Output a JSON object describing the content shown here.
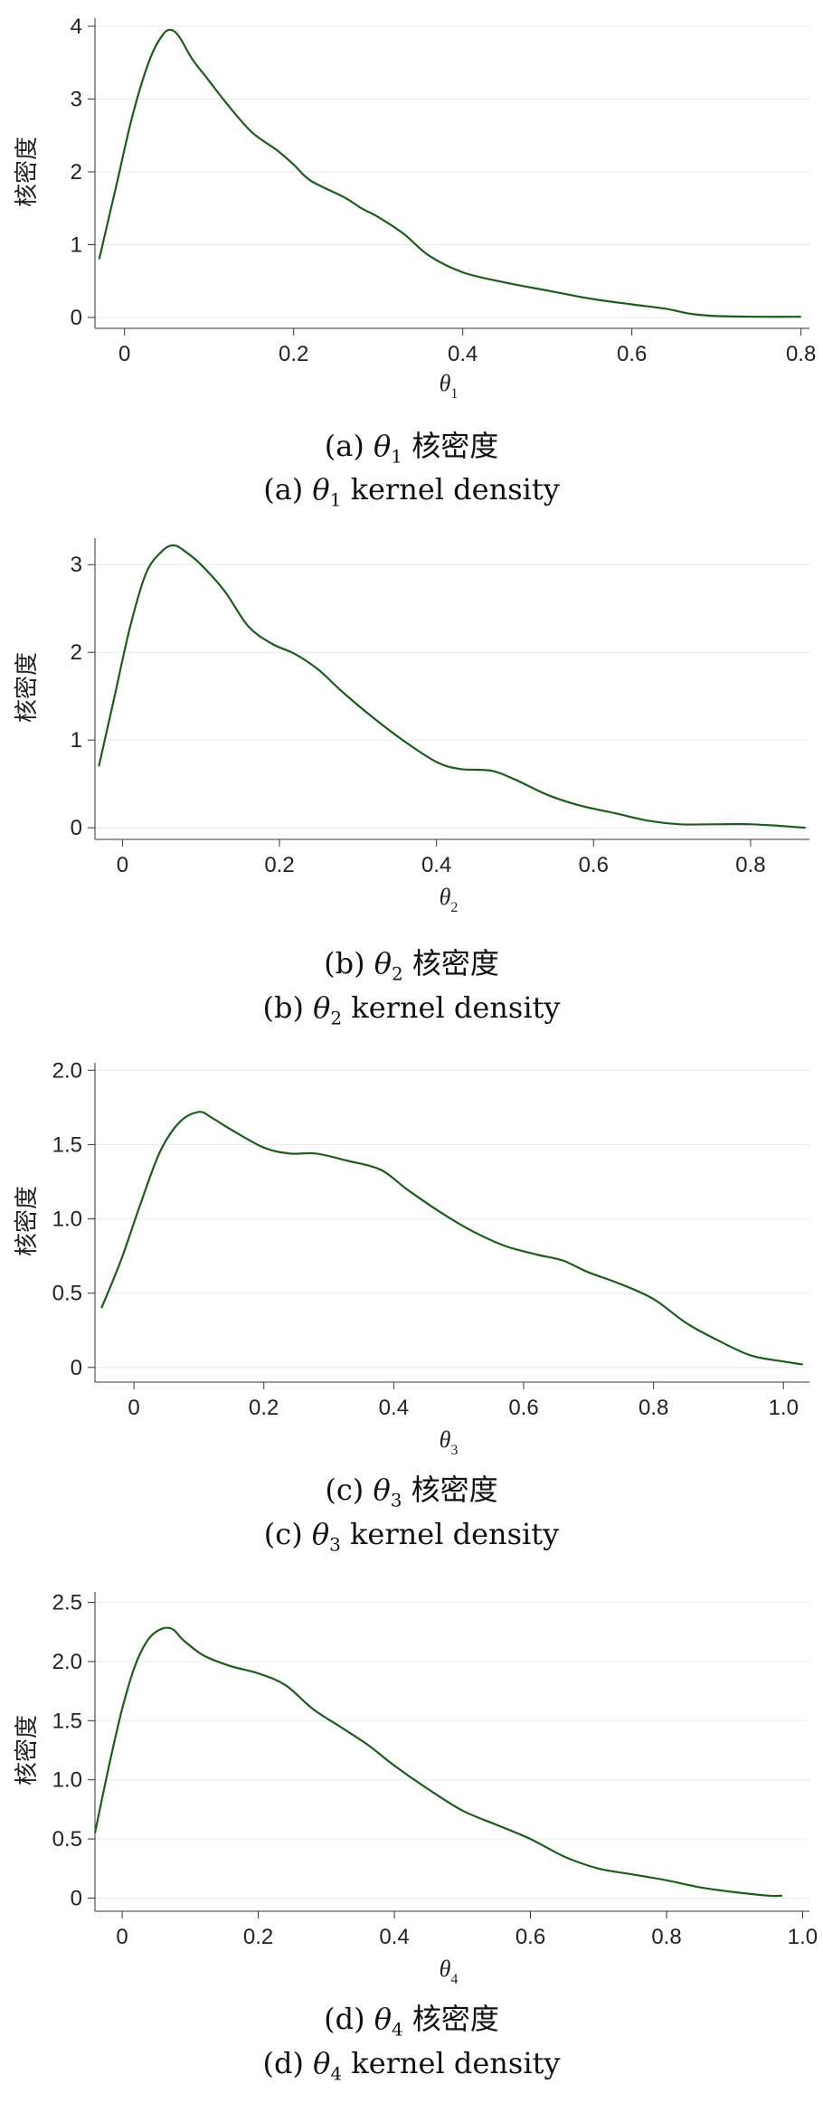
{
  "chart_data": [
    {
      "type": "line",
      "ylabel": "核密度",
      "xlabel_symbol": "θ",
      "xlabel_sub": "1",
      "xticks": [
        "0",
        "0.2",
        "0.4",
        "0.6",
        "0.8"
      ],
      "yticks": [
        "0",
        "1",
        "2",
        "3",
        "4"
      ],
      "xlim": [
        -0.035,
        0.81
      ],
      "ylim": [
        -0.05,
        4.05
      ],
      "grid": "horizontal",
      "color": "#1e5b1e",
      "series": [
        {
          "x": [
            -0.03,
            -0.01,
            0.01,
            0.03,
            0.045,
            0.055,
            0.065,
            0.08,
            0.1,
            0.12,
            0.15,
            0.18,
            0.2,
            0.22,
            0.26,
            0.28,
            0.3,
            0.33,
            0.36,
            0.4,
            0.45,
            0.5,
            0.55,
            0.6,
            0.64,
            0.67,
            0.7,
            0.75,
            0.8
          ],
          "y": [
            0.8,
            1.8,
            2.8,
            3.55,
            3.88,
            3.95,
            3.85,
            3.55,
            3.25,
            2.95,
            2.55,
            2.3,
            2.1,
            1.88,
            1.65,
            1.5,
            1.38,
            1.15,
            0.85,
            0.62,
            0.48,
            0.37,
            0.26,
            0.18,
            0.12,
            0.05,
            0.02,
            0.01,
            0.01
          ]
        }
      ]
    },
    {
      "type": "line",
      "ylabel": "核密度",
      "xlabel_symbol": "θ",
      "xlabel_sub": "2",
      "xticks": [
        "0",
        "0.2",
        "0.4",
        "0.6",
        "0.8"
      ],
      "yticks": [
        "0",
        "1",
        "2",
        "3"
      ],
      "xlim": [
        -0.035,
        0.875
      ],
      "ylim": [
        -0.05,
        3.25
      ],
      "grid": "horizontal",
      "color": "#1e5b1e",
      "series": [
        {
          "x": [
            -0.03,
            -0.01,
            0.01,
            0.03,
            0.05,
            0.065,
            0.08,
            0.1,
            0.13,
            0.16,
            0.19,
            0.22,
            0.25,
            0.28,
            0.32,
            0.36,
            0.4,
            0.43,
            0.47,
            0.5,
            0.54,
            0.58,
            0.63,
            0.67,
            0.71,
            0.75,
            0.8,
            0.84,
            0.87
          ],
          "y": [
            0.7,
            1.5,
            2.3,
            2.9,
            3.15,
            3.22,
            3.15,
            3.0,
            2.7,
            2.3,
            2.1,
            1.98,
            1.8,
            1.55,
            1.25,
            0.98,
            0.75,
            0.67,
            0.65,
            0.55,
            0.38,
            0.26,
            0.16,
            0.08,
            0.04,
            0.04,
            0.04,
            0.02,
            0.0
          ]
        }
      ]
    },
    {
      "type": "line",
      "ylabel": "核密度",
      "xlabel_symbol": "θ",
      "xlabel_sub": "3",
      "xticks": [
        "0",
        "0.2",
        "0.4",
        "0.6",
        "0.8",
        "1.0"
      ],
      "yticks": [
        "0",
        "0.5",
        "1.0",
        "1.5",
        "2.0"
      ],
      "xlim": [
        -0.06,
        1.04
      ],
      "ylim": [
        -0.05,
        2.02
      ],
      "grid": "horizontal",
      "color": "#1e5b1e",
      "series": [
        {
          "x": [
            -0.05,
            -0.02,
            0.01,
            0.04,
            0.07,
            0.1,
            0.12,
            0.15,
            0.2,
            0.24,
            0.28,
            0.33,
            0.38,
            0.42,
            0.47,
            0.52,
            0.57,
            0.62,
            0.66,
            0.7,
            0.75,
            0.8,
            0.85,
            0.9,
            0.95,
            1.0,
            1.03
          ],
          "y": [
            0.4,
            0.72,
            1.1,
            1.45,
            1.65,
            1.72,
            1.68,
            1.6,
            1.48,
            1.44,
            1.44,
            1.39,
            1.33,
            1.2,
            1.05,
            0.92,
            0.82,
            0.76,
            0.72,
            0.64,
            0.56,
            0.46,
            0.3,
            0.18,
            0.08,
            0.04,
            0.02
          ]
        }
      ]
    },
    {
      "type": "line",
      "ylabel": "核密度",
      "xlabel_symbol": "θ",
      "xlabel_sub": "4",
      "xticks": [
        "0",
        "0.2",
        "0.4",
        "0.6",
        "0.8",
        "1.0"
      ],
      "yticks": [
        "0",
        "0.5",
        "1.0",
        "1.5",
        "2.0",
        "2.5"
      ],
      "xlim": [
        -0.04,
        1.01
      ],
      "ylim": [
        -0.05,
        2.55
      ],
      "grid": "horizontal",
      "color": "#1e5b1e",
      "series": [
        {
          "x": [
            -0.04,
            -0.02,
            0.0,
            0.02,
            0.04,
            0.06,
            0.075,
            0.09,
            0.12,
            0.16,
            0.2,
            0.24,
            0.28,
            0.32,
            0.36,
            0.4,
            0.45,
            0.5,
            0.55,
            0.6,
            0.65,
            0.7,
            0.75,
            0.8,
            0.85,
            0.9,
            0.95,
            0.97
          ],
          "y": [
            0.55,
            1.1,
            1.6,
            1.98,
            2.2,
            2.28,
            2.27,
            2.18,
            2.05,
            1.96,
            1.9,
            1.8,
            1.6,
            1.45,
            1.3,
            1.12,
            0.92,
            0.74,
            0.62,
            0.5,
            0.35,
            0.25,
            0.2,
            0.15,
            0.09,
            0.05,
            0.02,
            0.02
          ]
        }
      ]
    }
  ],
  "captions": [
    {
      "letter": "a",
      "sym": "θ",
      "sub": "1",
      "zh": "核密度",
      "en": "kernel density"
    },
    {
      "letter": "b",
      "sym": "θ",
      "sub": "2",
      "zh": "核密度",
      "en": "kernel density"
    },
    {
      "letter": "c",
      "sym": "θ",
      "sub": "3",
      "zh": "核密度",
      "en": "kernel density"
    },
    {
      "letter": "d",
      "sym": "θ",
      "sub": "4",
      "zh": "核密度",
      "en": "kernel density"
    }
  ]
}
